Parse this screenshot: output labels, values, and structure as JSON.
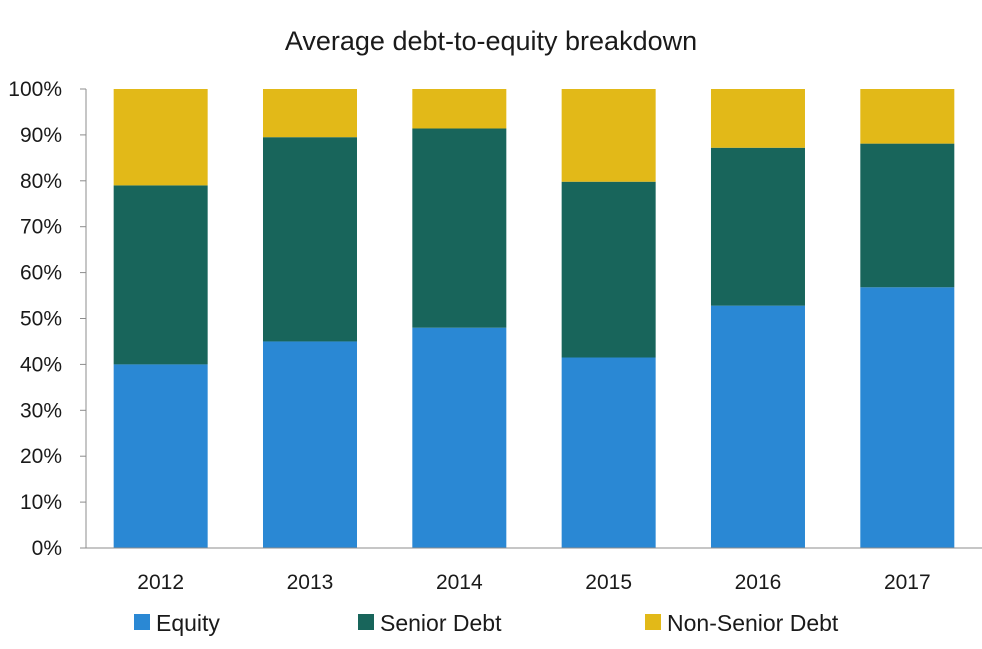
{
  "chart_data": {
    "type": "bar",
    "stacked": true,
    "title": "Average debt-to-equity breakdown",
    "xlabel": "",
    "ylabel": "",
    "categories": [
      "2012",
      "2013",
      "2014",
      "2015",
      "2016",
      "2017"
    ],
    "ylim": [
      0,
      100
    ],
    "yticks": [
      "0%",
      "10%",
      "20%",
      "30%",
      "40%",
      "50%",
      "60%",
      "70%",
      "80%",
      "90%",
      "100%"
    ],
    "grid": false,
    "legend_position": "bottom",
    "series": [
      {
        "name": "Equity",
        "color": "#2A88D4",
        "values": [
          40,
          45,
          48,
          41.5,
          52.8,
          56.8
        ]
      },
      {
        "name": "Senior Debt",
        "color": "#18655B",
        "values": [
          39,
          44.5,
          43.4,
          38.3,
          34.4,
          31.3
        ]
      },
      {
        "name": "Non-Senior Debt",
        "color": "#E2B918",
        "values": [
          21,
          10.5,
          8.6,
          20.2,
          12.8,
          11.9
        ]
      }
    ]
  }
}
